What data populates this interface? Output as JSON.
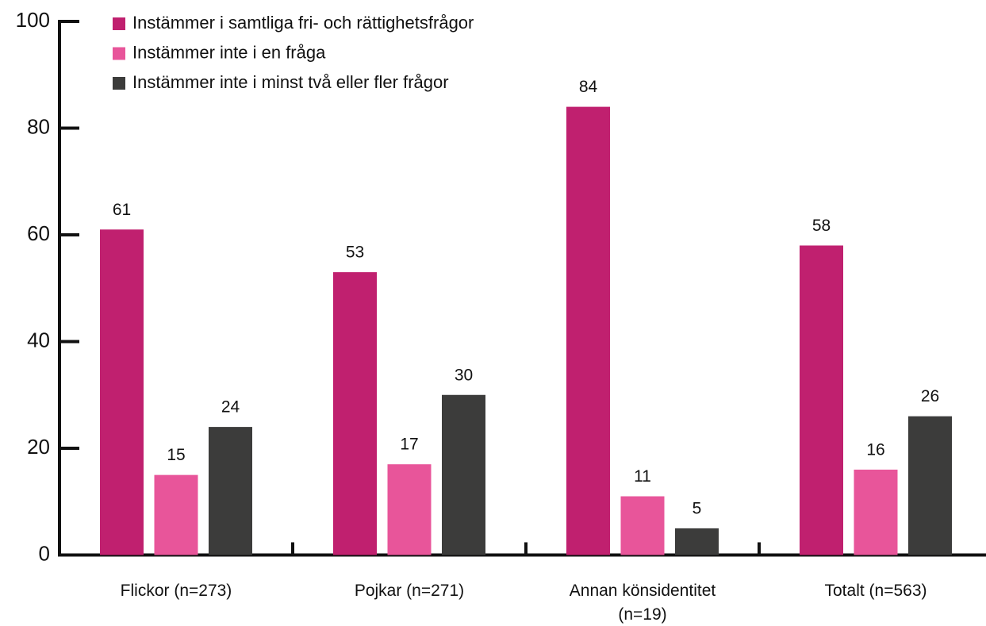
{
  "chart_data": {
    "type": "bar",
    "categories": [
      "Flickor (n=273)",
      "Pojkar (n=271)",
      "Annan könsidentitet (n=19)",
      "Totalt (n=563)"
    ],
    "series": [
      {
        "name": "Instämmer i samtliga fri- och rättighetsfrågor",
        "color": "#c0206f",
        "values": [
          61,
          53,
          84,
          58
        ]
      },
      {
        "name": "Instämmer inte i en fråga",
        "color": "#e8559a",
        "values": [
          15,
          17,
          11,
          16
        ]
      },
      {
        "name": "Instämmer inte i minst två eller fler frågor",
        "color": "#3c3c3b",
        "values": [
          24,
          30,
          5,
          26
        ]
      }
    ],
    "ylim": [
      0,
      100
    ],
    "yticks": [
      0,
      20,
      40,
      60,
      80,
      100
    ],
    "legend": "top-left",
    "grid": false
  }
}
